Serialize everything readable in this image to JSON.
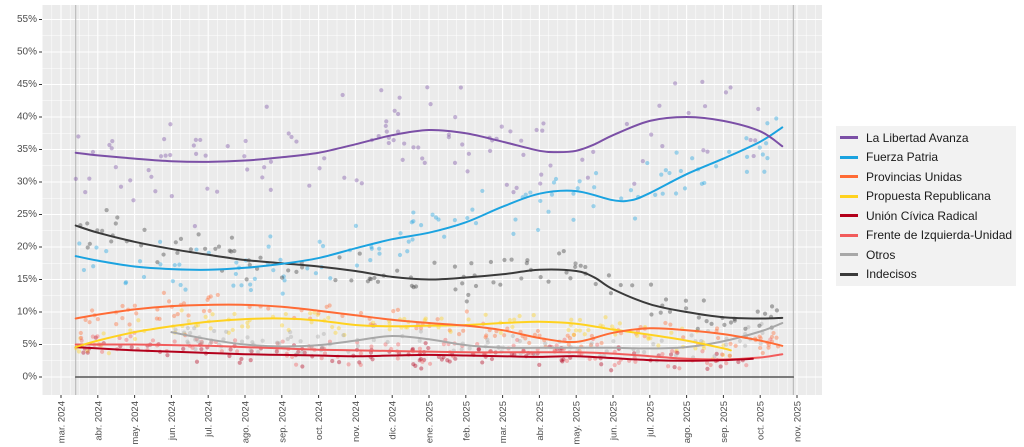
{
  "chart_data": {
    "type": "line",
    "title": "",
    "xlabel": "",
    "ylabel": "",
    "ylim": [
      0,
      55
    ],
    "y_ticks": [
      "0%",
      "5%",
      "10%",
      "15%",
      "20%",
      "25%",
      "30%",
      "35%",
      "40%",
      "45%",
      "50%",
      "55%"
    ],
    "x_ticks": [
      "mar. 2024",
      "abr. 2024",
      "may. 2024",
      "jun. 2024",
      "jul. 2024",
      "ago. 2024",
      "sep. 2024",
      "oct. 2024",
      "nov. 2024",
      "dic. 2024",
      "ene. 2025",
      "feb. 2025",
      "mar. 2025",
      "abr. 2025",
      "may. 2025",
      "jun. 2025",
      "jul. 2025",
      "ago. 2025",
      "sep. 2025",
      "oct. 2025",
      "nov. 2025"
    ],
    "x_unit": "months since mar. 2024",
    "xlim": [
      -0.5,
      20.6
    ],
    "reference_lines_x": [
      0.4,
      19.9
    ],
    "grid": true,
    "legend_position": "right",
    "series": [
      {
        "name": "La Libertad Avanza",
        "color": "#7B4FA6",
        "x": [
          0.4,
          1,
          2,
          3,
          4,
          5,
          6,
          7,
          8,
          9,
          10,
          11,
          12,
          13,
          13.5,
          14,
          14.5,
          15,
          16,
          17,
          18,
          19,
          19.6
        ],
        "values": [
          34.5,
          34.1,
          33.6,
          33.2,
          33.1,
          33.3,
          33.8,
          34.5,
          35.8,
          37.2,
          38.0,
          37.5,
          36.2,
          34.8,
          34.6,
          34.8,
          35.8,
          37.2,
          39.4,
          40.0,
          39.4,
          37.8,
          35.5
        ]
      },
      {
        "name": "Fuerza Patria",
        "color": "#1BA3E0",
        "x": [
          0.4,
          1,
          2,
          3,
          4,
          5,
          6,
          7,
          8,
          9,
          10,
          11,
          12,
          13,
          14,
          15,
          15.5,
          16,
          17,
          18,
          19,
          19.6
        ],
        "values": [
          18.6,
          17.9,
          17.0,
          16.6,
          16.5,
          16.8,
          17.4,
          18.3,
          19.8,
          21.2,
          22.2,
          23.8,
          26.2,
          28.2,
          28.6,
          27.2,
          27.2,
          28.3,
          31.2,
          33.6,
          36.2,
          38.4
        ]
      },
      {
        "name": "Provincias Unidas",
        "color": "#FF6B35",
        "x": [
          0.4,
          1,
          2,
          3,
          4,
          5,
          6,
          7,
          8,
          9,
          10,
          11,
          12,
          13,
          14,
          15,
          16,
          17,
          18,
          19,
          19.6
        ],
        "values": [
          9.0,
          9.6,
          10.4,
          10.9,
          11.1,
          11.1,
          10.8,
          10.2,
          9.5,
          8.8,
          8.3,
          7.9,
          7.2,
          6.0,
          5.4,
          6.8,
          7.5,
          7.2,
          6.6,
          5.6,
          4.8
        ]
      },
      {
        "name": "Propuesta Republicana",
        "color": "#FFD21F",
        "x": [
          0.4,
          1,
          2,
          3,
          4,
          5,
          6,
          7,
          8,
          9,
          10,
          11,
          12,
          13,
          14,
          15,
          16,
          17,
          18,
          18.2
        ],
        "values": [
          4.6,
          5.6,
          6.9,
          7.8,
          8.5,
          8.9,
          9.0,
          8.7,
          8.0,
          7.8,
          7.9,
          8.0,
          8.3,
          8.5,
          8.2,
          7.3,
          6.5,
          5.6,
          4.4,
          4.1
        ]
      },
      {
        "name": "Unión Cívica Radical",
        "color": "#B3001B",
        "x": [
          0.4,
          1,
          2,
          3,
          4,
          5,
          6,
          7,
          8,
          9,
          10,
          11,
          12,
          13,
          14,
          15,
          16,
          17,
          18,
          18.8
        ],
        "values": [
          4.6,
          4.4,
          4.1,
          3.9,
          3.7,
          3.5,
          3.4,
          3.3,
          3.2,
          3.3,
          3.4,
          3.3,
          3.2,
          3.1,
          3.2,
          2.9,
          2.6,
          2.5,
          2.6,
          2.8
        ]
      },
      {
        "name": "Frente de Izquierda-Unidad",
        "color": "#F25C5C",
        "x": [
          0.4,
          1,
          2,
          3,
          4,
          5,
          6,
          7,
          8,
          9,
          10,
          11,
          12,
          13,
          14,
          15,
          16,
          17,
          18,
          19,
          19.6
        ],
        "values": [
          5.0,
          5.0,
          5.0,
          4.9,
          4.8,
          4.6,
          4.4,
          4.2,
          4.1,
          4.0,
          3.9,
          3.8,
          3.8,
          3.8,
          3.8,
          3.6,
          3.2,
          2.8,
          2.7,
          3.0,
          3.5
        ]
      },
      {
        "name": "Otros",
        "color": "#A8A8A8",
        "x": [
          3,
          4,
          5,
          6,
          7,
          8,
          9,
          10,
          11,
          12,
          13,
          14,
          15,
          16,
          17,
          18,
          19,
          19.6
        ],
        "values": [
          6.9,
          5.8,
          5.0,
          4.7,
          4.9,
          5.6,
          6.3,
          5.8,
          4.9,
          4.5,
          4.5,
          4.5,
          4.5,
          4.4,
          4.6,
          5.5,
          7.0,
          8.3
        ]
      },
      {
        "name": "Indecisos",
        "color": "#3A3A3A",
        "x": [
          0.4,
          1,
          2,
          3,
          4,
          5,
          6,
          7,
          8,
          9,
          10,
          11,
          12,
          13,
          14,
          14.5,
          15,
          16,
          17,
          18,
          19,
          19.6
        ],
        "values": [
          23.3,
          22.2,
          20.8,
          19.7,
          18.8,
          18.0,
          17.5,
          17.0,
          16.3,
          15.4,
          15.0,
          15.3,
          15.8,
          16.5,
          16.3,
          15.3,
          13.5,
          11.2,
          10.0,
          9.2,
          9.0,
          9.1
        ]
      },
      {
        "name": "Baseline",
        "color": "#555555",
        "x": [
          0.4,
          19.9
        ],
        "values": [
          0,
          0
        ],
        "legend": false
      }
    ]
  }
}
